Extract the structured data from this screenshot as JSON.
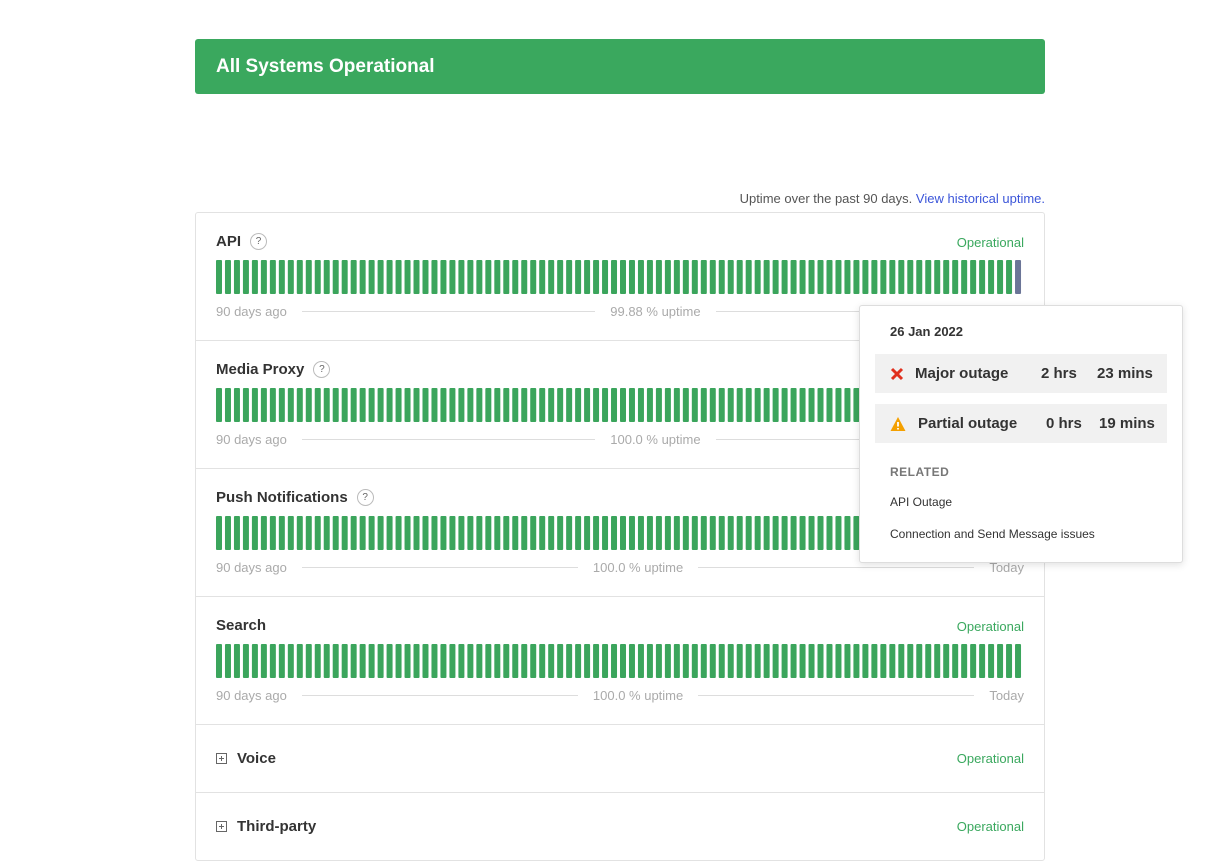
{
  "banner": {
    "title": "All Systems Operational"
  },
  "uptime_note": {
    "text": "Uptime over the past 90 days.",
    "link": "View historical uptime."
  },
  "components": [
    {
      "name": "API",
      "info_icon": "?",
      "status": "Operational",
      "range_start": "90 days ago",
      "uptime": "99.88 % uptime"
    },
    {
      "name": "Media Proxy",
      "info_icon": "?",
      "range_start": "90 days ago",
      "uptime": "100.0 % uptime"
    },
    {
      "name": "Push Notifications",
      "info_icon": "?",
      "range_start": "90 days ago",
      "uptime": "100.0 % uptime",
      "range_end": "Today"
    },
    {
      "name": "Search",
      "status": "Operational",
      "range_start": "90 days ago",
      "uptime": "100.0 % uptime",
      "range_end": "Today"
    },
    {
      "name": "Voice",
      "status": "Operational"
    },
    {
      "name": "Third-party",
      "status": "Operational"
    }
  ],
  "tooltip": {
    "date": "26 Jan 2022",
    "outages": [
      {
        "label": "Major outage",
        "hours": "2 hrs",
        "minutes": "23 mins"
      },
      {
        "label": "Partial outage",
        "hours": "0 hrs",
        "minutes": "19 mins"
      }
    ],
    "related_heading": "RELATED",
    "related": [
      "API Outage",
      "Connection and Send Message issues"
    ]
  }
}
